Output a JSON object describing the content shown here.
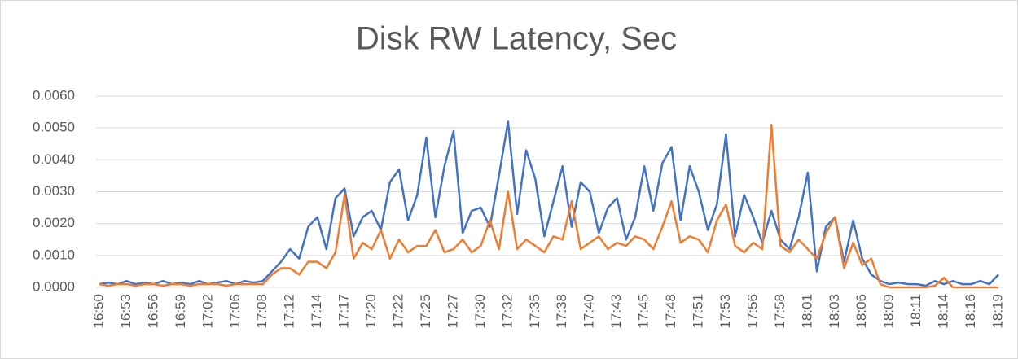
{
  "chart_data": {
    "type": "line",
    "title": "Disk RW Latency, Sec",
    "categories": [
      "16:50",
      null,
      null,
      "16:53",
      null,
      null,
      "16:56",
      null,
      null,
      "16:59",
      null,
      null,
      "17:02",
      null,
      null,
      "17:06",
      null,
      null,
      "17:08",
      null,
      null,
      "17:12",
      null,
      null,
      "17:14",
      null,
      null,
      "17:17",
      null,
      null,
      "17:20",
      null,
      null,
      "17:22",
      null,
      null,
      "17:25",
      null,
      null,
      "17:27",
      null,
      null,
      "17:30",
      null,
      null,
      "17:32",
      null,
      null,
      "17:35",
      null,
      null,
      "17:38",
      null,
      null,
      "17:40",
      null,
      null,
      "17:43",
      null,
      null,
      "17:45",
      null,
      null,
      "17:48",
      null,
      null,
      "17:51",
      null,
      null,
      "17:53",
      null,
      null,
      "17:56",
      null,
      null,
      "17:58",
      null,
      null,
      "18:01",
      null,
      null,
      "18:03",
      null,
      null,
      "18:06",
      null,
      null,
      "18:09",
      null,
      null,
      "18:11",
      null,
      null,
      "18:14",
      null,
      null,
      "18:16",
      null,
      null,
      "18:19"
    ],
    "series": [
      {
        "color": "#4472c4",
        "values": [
          0.0001,
          0.00015,
          0.0001,
          0.0002,
          0.0001,
          0.00015,
          0.0001,
          0.0002,
          0.0001,
          0.00015,
          0.0001,
          0.0002,
          0.0001,
          0.00015,
          0.0002,
          0.0001,
          0.0002,
          0.00015,
          0.0002,
          0.0005,
          0.0008,
          0.0012,
          0.0009,
          0.0019,
          0.0022,
          0.0012,
          0.0028,
          0.0031,
          0.0016,
          0.0022,
          0.0024,
          0.0018,
          0.0033,
          0.0037,
          0.0021,
          0.0029,
          0.0047,
          0.0022,
          0.0038,
          0.0049,
          0.0017,
          0.0024,
          0.0025,
          0.0019,
          0.0035,
          0.0052,
          0.0023,
          0.0043,
          0.0034,
          0.0016,
          0.0027,
          0.0038,
          0.0019,
          0.0033,
          0.003,
          0.0017,
          0.0025,
          0.0028,
          0.0015,
          0.0022,
          0.0038,
          0.0024,
          0.0039,
          0.0044,
          0.0021,
          0.0038,
          0.003,
          0.0018,
          0.0026,
          0.0048,
          0.0016,
          0.0029,
          0.0022,
          0.0014,
          0.0024,
          0.0015,
          0.0012,
          0.0022,
          0.0036,
          0.0005,
          0.0019,
          0.0022,
          0.0008,
          0.0021,
          0.0009,
          0.0004,
          0.0002,
          0.0001,
          0.00015,
          0.0001,
          0.0001,
          5e-05,
          0.0002,
          0.0001,
          0.0002,
          0.0001,
          0.0001,
          0.0002,
          0.0001,
          0.0004
        ]
      },
      {
        "color": "#ed7d31",
        "values": [
          0.0001,
          5e-05,
          0.0001,
          0.0001,
          5e-05,
          0.0001,
          0.0001,
          5e-05,
          0.0001,
          0.0001,
          5e-05,
          0.0001,
          0.0001,
          0.0001,
          5e-05,
          0.0001,
          0.0001,
          0.0001,
          0.0001,
          0.0004,
          0.0006,
          0.0006,
          0.0004,
          0.0008,
          0.0008,
          0.0006,
          0.0011,
          0.0029,
          0.0009,
          0.0014,
          0.0012,
          0.0018,
          0.0009,
          0.0015,
          0.0011,
          0.0013,
          0.0013,
          0.0018,
          0.0011,
          0.0012,
          0.0015,
          0.0011,
          0.0013,
          0.0021,
          0.0012,
          0.003,
          0.0012,
          0.0015,
          0.0013,
          0.0011,
          0.0016,
          0.0015,
          0.0027,
          0.0012,
          0.0014,
          0.0016,
          0.0012,
          0.0014,
          0.0013,
          0.0016,
          0.0015,
          0.0012,
          0.0019,
          0.0027,
          0.0014,
          0.0016,
          0.0015,
          0.0011,
          0.0021,
          0.0026,
          0.0013,
          0.0011,
          0.0014,
          0.0012,
          0.0051,
          0.0013,
          0.0011,
          0.0015,
          0.0012,
          0.0009,
          0.0017,
          0.0022,
          0.0006,
          0.0014,
          0.0007,
          0.0009,
          0.0001,
          0,
          0,
          0,
          0,
          0,
          5e-05,
          0.0003,
          0,
          0,
          0,
          0,
          0,
          0
        ]
      }
    ],
    "ylim": [
      0,
      0.006
    ],
    "yticks": [
      {
        "value": 0,
        "label": "0.0000"
      },
      {
        "value": 0.001,
        "label": "0.0010"
      },
      {
        "value": 0.002,
        "label": "0.0020"
      },
      {
        "value": 0.003,
        "label": "0.0030"
      },
      {
        "value": 0.004,
        "label": "0.0040"
      },
      {
        "value": 0.005,
        "label": "0.0050"
      },
      {
        "value": 0.006,
        "label": "0.0060"
      }
    ],
    "grid": true
  }
}
